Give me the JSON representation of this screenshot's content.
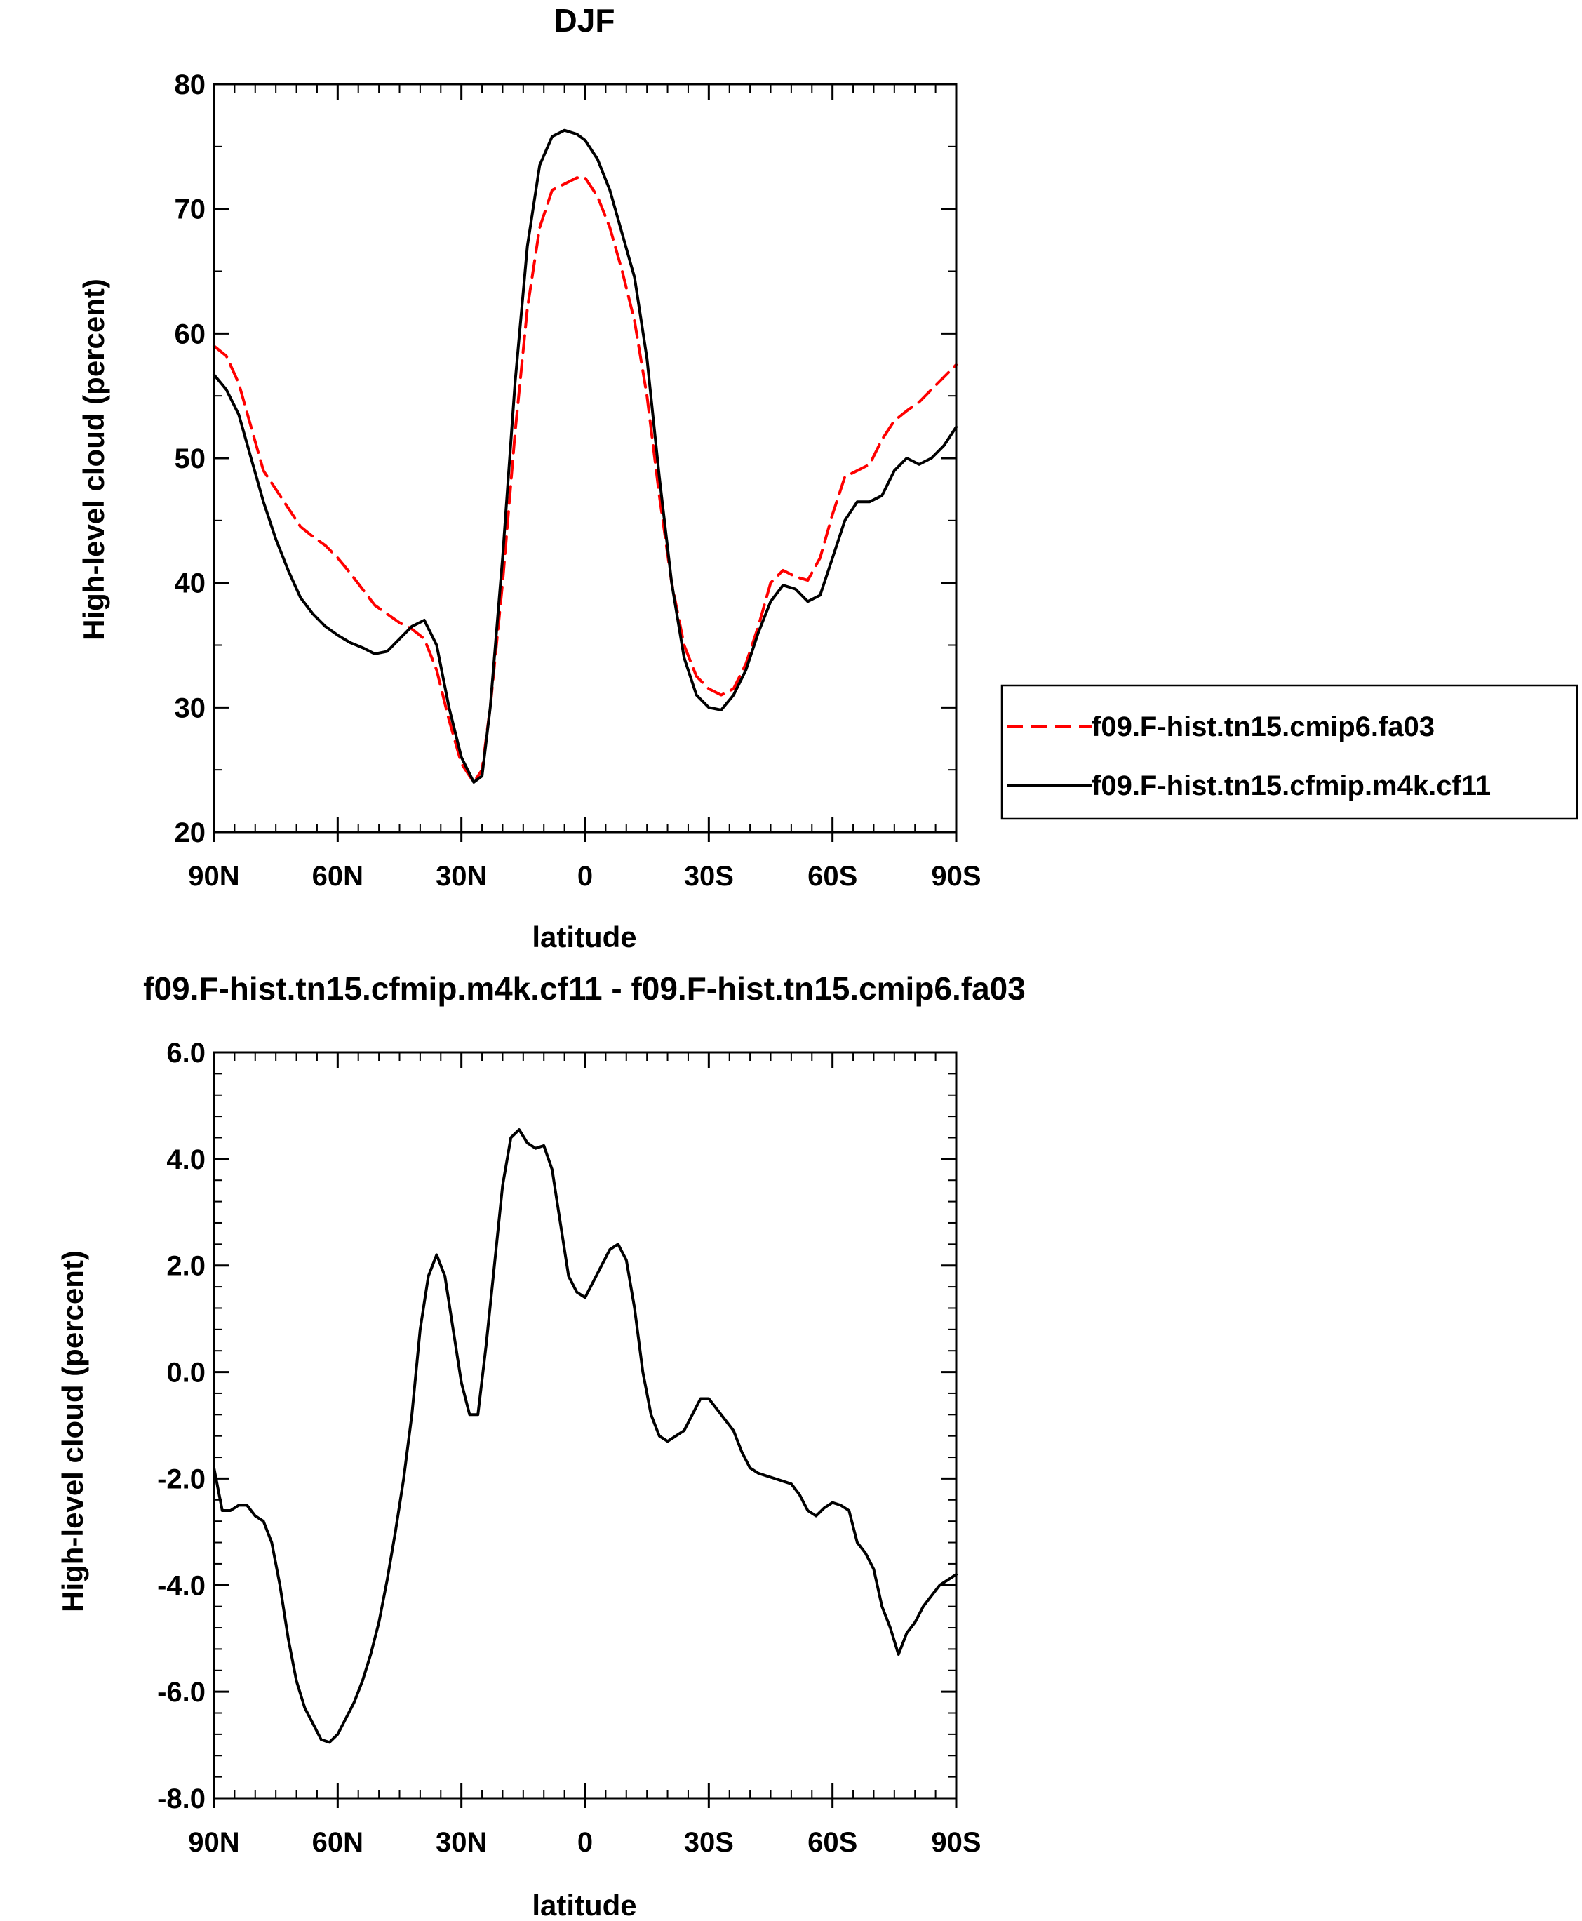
{
  "chart_data": [
    {
      "type": "line",
      "title": "DJF",
      "xlabel": "latitude",
      "ylabel": "High-level cloud (percent)",
      "xlim": [
        90,
        -90
      ],
      "ylim": [
        20,
        80
      ],
      "xticks": [
        {
          "value": 90,
          "label": "90N"
        },
        {
          "value": 60,
          "label": "60N"
        },
        {
          "value": 30,
          "label": "30N"
        },
        {
          "value": 0,
          "label": "0"
        },
        {
          "value": -30,
          "label": "30S"
        },
        {
          "value": -60,
          "label": "60S"
        },
        {
          "value": -90,
          "label": "90S"
        }
      ],
      "yticks": [
        {
          "value": 20,
          "label": "20"
        },
        {
          "value": 30,
          "label": "30"
        },
        {
          "value": 40,
          "label": "40"
        },
        {
          "value": 50,
          "label": "50"
        },
        {
          "value": 60,
          "label": "60"
        },
        {
          "value": 70,
          "label": "70"
        },
        {
          "value": 80,
          "label": "80"
        }
      ],
      "grid": false,
      "legend_position": "right",
      "series": [
        {
          "name": "f09.F-hist.tn15.cmip6.fa03",
          "color": "#ff0000",
          "dash": "dashed",
          "x": [
            90,
            87,
            84,
            81,
            78,
            75,
            72,
            69,
            66,
            63,
            60,
            57,
            54,
            51,
            48,
            45,
            42,
            39,
            36,
            33,
            30,
            27,
            25,
            23,
            20,
            17,
            14,
            11,
            8,
            5,
            2,
            0,
            -3,
            -6,
            -9,
            -12,
            -15,
            -18,
            -21,
            -24,
            -27,
            -30,
            -33,
            -36,
            -39,
            -42,
            -45,
            -48,
            -51,
            -54,
            -57,
            -60,
            -63,
            -66,
            -69,
            -72,
            -75,
            -78,
            -81,
            -84,
            -87,
            -90
          ],
          "y": [
            59.0,
            58.2,
            56.0,
            52.5,
            49.0,
            47.5,
            46.0,
            44.5,
            43.7,
            43.0,
            42.0,
            40.8,
            39.5,
            38.2,
            37.5,
            36.8,
            36.3,
            35.5,
            33.0,
            29.0,
            25.5,
            24.0,
            25.0,
            30.0,
            40.0,
            52.0,
            62.0,
            68.5,
            71.5,
            72.0,
            72.5,
            72.5,
            71.0,
            68.5,
            65.0,
            61.0,
            55.0,
            47.0,
            40.0,
            35.0,
            32.5,
            31.5,
            31.0,
            31.5,
            33.5,
            36.5,
            40.0,
            41.0,
            40.5,
            40.2,
            42.0,
            45.5,
            48.5,
            49.0,
            49.5,
            51.5,
            53.0,
            53.8,
            54.5,
            55.5,
            56.5,
            57.5
          ]
        },
        {
          "name": "f09.F-hist.tn15.cfmip.m4k.cf11",
          "color": "#000000",
          "dash": "solid",
          "x": [
            90,
            87,
            84,
            81,
            78,
            75,
            72,
            69,
            66,
            63,
            60,
            57,
            54,
            51,
            48,
            45,
            42,
            39,
            36,
            33,
            30,
            27,
            25,
            23,
            20,
            17,
            14,
            11,
            8,
            5,
            2,
            0,
            -3,
            -6,
            -9,
            -12,
            -15,
            -18,
            -21,
            -24,
            -27,
            -30,
            -33,
            -36,
            -39,
            -42,
            -45,
            -48,
            -51,
            -54,
            -57,
            -60,
            -63,
            -66,
            -69,
            -72,
            -75,
            -78,
            -81,
            -84,
            -87,
            -90
          ],
          "y": [
            56.7,
            55.5,
            53.5,
            50.0,
            46.5,
            43.5,
            41.0,
            38.8,
            37.5,
            36.5,
            35.8,
            35.2,
            34.8,
            34.3,
            34.5,
            35.5,
            36.5,
            37.0,
            35.0,
            30.0,
            26.0,
            24.0,
            24.5,
            30.0,
            42.0,
            56.0,
            67.0,
            73.5,
            75.8,
            76.3,
            76.0,
            75.5,
            74.0,
            71.5,
            68.0,
            64.5,
            58.0,
            48.5,
            40.0,
            34.0,
            31.0,
            30.0,
            29.8,
            31.0,
            33.0,
            36.0,
            38.5,
            39.8,
            39.5,
            38.5,
            39.0,
            42.0,
            45.0,
            46.5,
            46.5,
            47.0,
            49.0,
            50.0,
            49.5,
            50.0,
            51.0,
            52.5
          ]
        }
      ]
    },
    {
      "type": "line",
      "title": "f09.F-hist.tn15.cfmip.m4k.cf11 - f09.F-hist.tn15.cmip6.fa03",
      "xlabel": "latitude",
      "ylabel": "High-level cloud (percent)",
      "xlim": [
        90,
        -90
      ],
      "ylim": [
        -8,
        6
      ],
      "xticks": [
        {
          "value": 90,
          "label": "90N"
        },
        {
          "value": 60,
          "label": "60N"
        },
        {
          "value": 30,
          "label": "30N"
        },
        {
          "value": 0,
          "label": "0"
        },
        {
          "value": -30,
          "label": "30S"
        },
        {
          "value": -60,
          "label": "60S"
        },
        {
          "value": -90,
          "label": "90S"
        }
      ],
      "yticks": [
        {
          "value": -8,
          "label": "-8.0"
        },
        {
          "value": -6,
          "label": "-6.0"
        },
        {
          "value": -4,
          "label": "-4.0"
        },
        {
          "value": -2,
          "label": "-2.0"
        },
        {
          "value": 0,
          "label": "0.0"
        },
        {
          "value": 2,
          "label": "2.0"
        },
        {
          "value": 4,
          "label": "4.0"
        },
        {
          "value": 6,
          "label": "6.0"
        }
      ],
      "grid": false,
      "series": [
        {
          "color": "#000000",
          "dash": "solid",
          "x": [
            90,
            88,
            86,
            84,
            82,
            80,
            78,
            76,
            74,
            72,
            70,
            68,
            66,
            64,
            62,
            60,
            58,
            56,
            54,
            52,
            50,
            48,
            46,
            44,
            42,
            40,
            38,
            36,
            34,
            32,
            30,
            28,
            26,
            24,
            22,
            20,
            18,
            16,
            14,
            12,
            10,
            8,
            6,
            4,
            2,
            0,
            -2,
            -4,
            -6,
            -8,
            -10,
            -12,
            -14,
            -16,
            -18,
            -20,
            -22,
            -24,
            -26,
            -28,
            -30,
            -32,
            -34,
            -36,
            -38,
            -40,
            -42,
            -44,
            -46,
            -48,
            -50,
            -52,
            -54,
            -56,
            -58,
            -60,
            -62,
            -64,
            -66,
            -68,
            -70,
            -72,
            -74,
            -76,
            -78,
            -80,
            -82,
            -84,
            -86,
            -88,
            -90
          ],
          "y": [
            -1.8,
            -2.6,
            -2.6,
            -2.5,
            -2.5,
            -2.7,
            -2.8,
            -3.2,
            -4.0,
            -5.0,
            -5.8,
            -6.3,
            -6.6,
            -6.9,
            -6.95,
            -6.8,
            -6.5,
            -6.2,
            -5.8,
            -5.3,
            -4.7,
            -3.9,
            -3.0,
            -2.0,
            -0.8,
            0.8,
            1.8,
            2.2,
            1.8,
            0.8,
            -0.2,
            -0.8,
            -0.8,
            0.5,
            2.0,
            3.5,
            4.4,
            4.55,
            4.3,
            4.2,
            4.25,
            3.8,
            2.8,
            1.8,
            1.5,
            1.4,
            1.7,
            2.0,
            2.3,
            2.4,
            2.1,
            1.2,
            0.0,
            -0.8,
            -1.2,
            -1.3,
            -1.2,
            -1.1,
            -0.8,
            -0.5,
            -0.5,
            -0.7,
            -0.9,
            -1.1,
            -1.5,
            -1.8,
            -1.9,
            -1.95,
            -2.0,
            -2.05,
            -2.1,
            -2.3,
            -2.6,
            -2.7,
            -2.55,
            -2.45,
            -2.5,
            -2.6,
            -3.2,
            -3.4,
            -3.7,
            -4.4,
            -4.8,
            -5.3,
            -4.9,
            -4.7,
            -4.4,
            -4.2,
            -4.0,
            -3.9,
            -3.8
          ]
        }
      ]
    }
  ]
}
